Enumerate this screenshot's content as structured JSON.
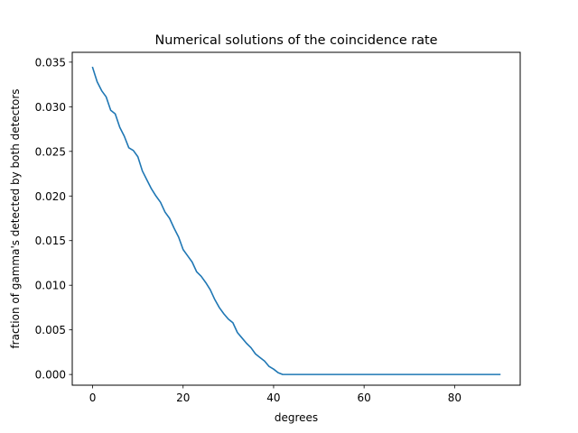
{
  "chart_data": {
    "type": "line",
    "title": "Numerical solutions of the coincidence rate",
    "xlabel": "degrees",
    "ylabel": "fraction of gamma's detected by both detectors",
    "xlim": [
      -4.5,
      94.5
    ],
    "ylim": [
      -0.0012,
      0.0361
    ],
    "xticks": [
      0,
      20,
      40,
      60,
      80
    ],
    "xtick_labels": [
      "0",
      "20",
      "40",
      "60",
      "80"
    ],
    "yticks": [
      0.0,
      0.005,
      0.01,
      0.015,
      0.02,
      0.025,
      0.03,
      0.035
    ],
    "ytick_labels": [
      "0.000",
      "0.005",
      "0.010",
      "0.015",
      "0.020",
      "0.025",
      "0.030",
      "0.035"
    ],
    "grid": false,
    "legend": "none",
    "line_color": "#1f77b4",
    "series": [
      {
        "x": [
          0,
          1,
          2,
          3,
          4,
          5,
          6,
          7,
          8,
          9,
          10,
          11,
          12,
          13,
          14,
          15,
          16,
          17,
          18,
          19,
          20,
          21,
          22,
          23,
          24,
          25,
          26,
          27,
          28,
          29,
          30,
          31,
          32,
          33,
          34,
          35,
          36,
          37,
          38,
          39,
          40,
          41,
          42,
          43,
          44,
          45,
          50,
          55,
          60,
          65,
          70,
          75,
          80,
          85,
          90
        ],
        "values": [
          0.0344,
          0.0328,
          0.0318,
          0.0311,
          0.0296,
          0.0292,
          0.0277,
          0.0267,
          0.0254,
          0.0251,
          0.0244,
          0.0228,
          0.0218,
          0.0208,
          0.02,
          0.0193,
          0.0182,
          0.0175,
          0.0164,
          0.0154,
          0.014,
          0.0133,
          0.0126,
          0.0115,
          0.011,
          0.0103,
          0.0095,
          0.0084,
          0.0075,
          0.0068,
          0.0062,
          0.0058,
          0.0047,
          0.0041,
          0.0035,
          0.003,
          0.0023,
          0.0019,
          0.0015,
          0.0009,
          0.0006,
          0.0002,
          0.0,
          0.0,
          0.0,
          0.0,
          0.0,
          0.0,
          0.0,
          0.0,
          0.0,
          0.0,
          0.0,
          0.0,
          0.0
        ]
      }
    ]
  }
}
